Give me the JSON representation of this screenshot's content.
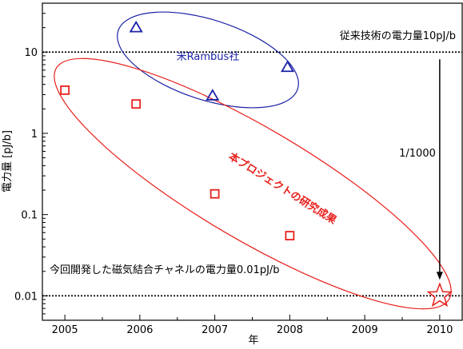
{
  "chart_data": {
    "type": "scatter",
    "xlabel": "年",
    "ylabel": "電力量 [pJ/b]",
    "xlim": [
      2004.7,
      2010.3
    ],
    "ylim": [
      0.005,
      40
    ],
    "yscale": "log",
    "xticks": [
      "2005",
      "2006",
      "2007",
      "2008",
      "2009",
      "2010"
    ],
    "yticks": [
      "0.01",
      "0.1",
      "1",
      "10"
    ],
    "series": [
      {
        "name": "米Rambus社",
        "marker": "triangle",
        "color": "#1c23a6",
        "points": [
          {
            "x": 2005.95,
            "y": 20
          },
          {
            "x": 2006.97,
            "y": 2.9
          },
          {
            "x": 2007.97,
            "y": 6.5
          }
        ]
      },
      {
        "name": "本プロジェクトの研究成果",
        "marker": "square",
        "color": "#e8201c",
        "points": [
          {
            "x": 2005.0,
            "y": 3.4
          },
          {
            "x": 2005.95,
            "y": 2.3
          },
          {
            "x": 2007.0,
            "y": 0.18
          },
          {
            "x": 2008.0,
            "y": 0.055
          },
          {
            "x": 2010.0,
            "y": 0.01,
            "marker": "star"
          }
        ]
      }
    ],
    "reference_lines": [
      {
        "y": 10,
        "label": "従来技術の電力量10pJ/b"
      },
      {
        "y": 0.01,
        "label": "今回開発した磁気結合チャネルの電力量0.01pJ/b"
      }
    ],
    "arrow": {
      "x": 2010.0,
      "from_y": 10,
      "to_y": 0.01,
      "label": "1/1000"
    },
    "grid": false
  },
  "colors": {
    "rambus": "#1c23a6",
    "project": "#e8201c",
    "axis": "#000000"
  }
}
